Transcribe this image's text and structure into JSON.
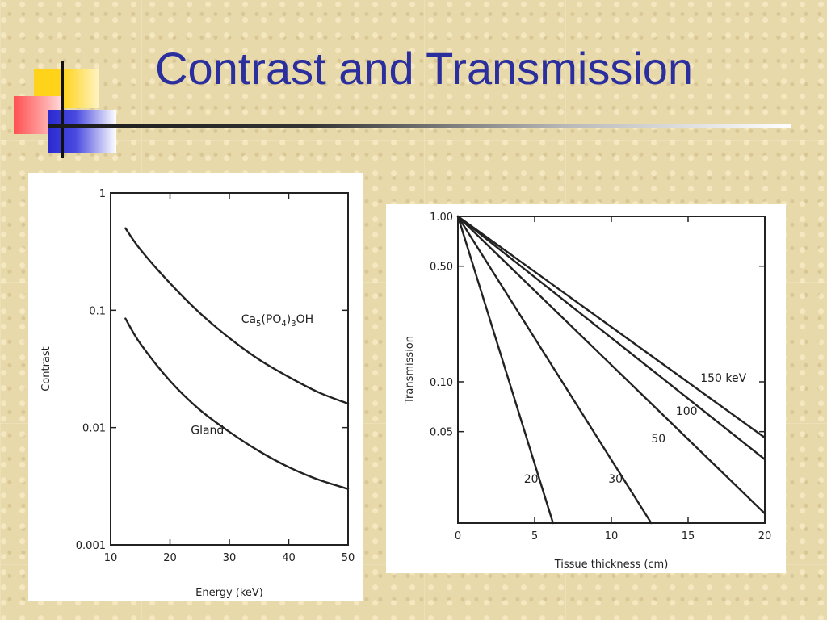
{
  "slide": {
    "title": "Contrast and Transmission"
  },
  "colors": {
    "title": "#2b2f9e",
    "ink": "#222222"
  },
  "chart_data": [
    {
      "type": "line",
      "title": "",
      "xlabel": "Energy (keV)",
      "ylabel": "Contrast",
      "yscale": "log",
      "xlim": [
        10,
        50
      ],
      "ylim": [
        0.001,
        1
      ],
      "xticks": [
        10,
        20,
        30,
        40,
        50
      ],
      "xtick_labels": [
        "10",
        "20",
        "30",
        "40",
        "50"
      ],
      "yticks": [
        0.001,
        0.01,
        0.1,
        1
      ],
      "ytick_labels": [
        "0.001",
        "0.01",
        "0.1",
        "1"
      ],
      "series": [
        {
          "name": "Ca5(PO4)3OH",
          "label_parts": [
            "Ca",
            "5",
            "(PO",
            "4",
            ")",
            "3",
            "OH"
          ],
          "label_at": [
            32,
            0.078
          ],
          "x": [
            12.5,
            15,
            20,
            25,
            30,
            35,
            40,
            45,
            50
          ],
          "y": [
            0.5,
            0.33,
            0.17,
            0.095,
            0.058,
            0.038,
            0.027,
            0.02,
            0.016
          ]
        },
        {
          "name": "Gland",
          "label_at": [
            23.5,
            0.0088
          ],
          "x": [
            12.5,
            15,
            20,
            25,
            30,
            35,
            40,
            45,
            50
          ],
          "y": [
            0.085,
            0.052,
            0.025,
            0.0142,
            0.0092,
            0.0063,
            0.0046,
            0.0036,
            0.003
          ]
        }
      ]
    },
    {
      "type": "line",
      "title": "",
      "xlabel": "Tissue thickness  (cm)",
      "ylabel": "Transmission",
      "yscale": "log",
      "xlim": [
        0,
        20
      ],
      "ylim": [
        0.014,
        1
      ],
      "xticks": [
        0,
        5,
        10,
        15,
        20
      ],
      "xtick_labels": [
        "0",
        "5",
        "10",
        "15",
        "20"
      ],
      "yticks": [
        1,
        0.5,
        0.1,
        0.05
      ],
      "ytick_labels": [
        "1.00",
        "0.50",
        "0.10",
        "0.05"
      ],
      "series": [
        {
          "name": "150 keV",
          "label_at": [
            15.8,
            0.1
          ],
          "x": [
            0,
            20
          ],
          "y": [
            1.0,
            0.046
          ]
        },
        {
          "name": "100",
          "label_at": [
            14.2,
            0.063
          ],
          "x": [
            0,
            20
          ],
          "y": [
            1.0,
            0.034
          ]
        },
        {
          "name": "50",
          "label_at": [
            12.6,
            0.043
          ],
          "x": [
            0,
            20
          ],
          "y": [
            1.0,
            0.016
          ]
        },
        {
          "name": "30",
          "label_at": [
            9.8,
            0.0245
          ],
          "x": [
            0,
            12.6
          ],
          "y": [
            1.0,
            0.014
          ]
        },
        {
          "name": "20",
          "label_at": [
            4.3,
            0.0245
          ],
          "x": [
            0,
            6.2
          ],
          "y": [
            1.0,
            0.014
          ]
        }
      ]
    }
  ]
}
